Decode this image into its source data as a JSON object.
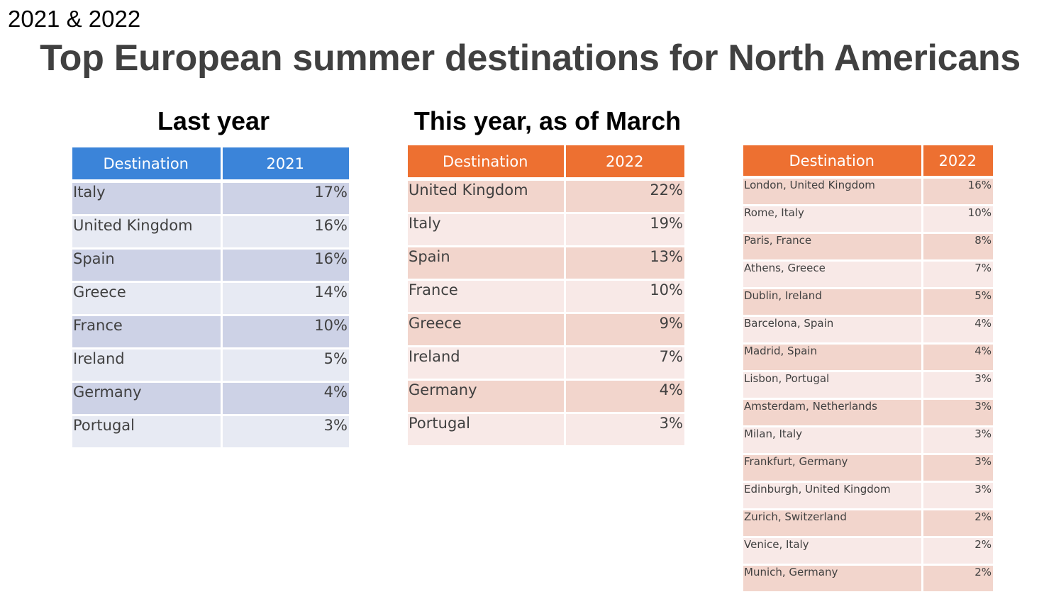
{
  "corner_label": "2021 & 2022",
  "title": "Top European summer destinations for North Americans",
  "last_year": {
    "heading": "Last year",
    "headers": [
      "Destination",
      "2021"
    ],
    "rows": [
      [
        "Italy",
        "17%"
      ],
      [
        "United Kingdom",
        "16%"
      ],
      [
        "Spain",
        "16%"
      ],
      [
        "Greece",
        "14%"
      ],
      [
        "France",
        "10%"
      ],
      [
        "Ireland",
        "5%"
      ],
      [
        "Germany",
        "4%"
      ],
      [
        "Portugal",
        "3%"
      ]
    ]
  },
  "this_year": {
    "heading": "This year, as of March",
    "headers": [
      "Destination",
      "2022"
    ],
    "rows": [
      [
        "United Kingdom",
        "22%"
      ],
      [
        "Italy",
        "19%"
      ],
      [
        "Spain",
        "13%"
      ],
      [
        "France",
        "10%"
      ],
      [
        "Greece",
        "9%"
      ],
      [
        "Ireland",
        "7%"
      ],
      [
        "Germany",
        "4%"
      ],
      [
        "Portugal",
        "3%"
      ]
    ]
  },
  "cities": {
    "headers": [
      "Destination",
      "2022"
    ],
    "rows": [
      [
        "London, United Kingdom",
        "16%"
      ],
      [
        "Rome, Italy",
        "10%"
      ],
      [
        "Paris, France",
        "8%"
      ],
      [
        "Athens, Greece",
        "7%"
      ],
      [
        "Dublin, Ireland",
        "5%"
      ],
      [
        "Barcelona, Spain",
        "4%"
      ],
      [
        "Madrid, Spain",
        "4%"
      ],
      [
        "Lisbon, Portugal",
        "3%"
      ],
      [
        "Amsterdam, Netherlands",
        "3%"
      ],
      [
        "Milan, Italy",
        "3%"
      ],
      [
        "Frankfurt, Germany",
        "3%"
      ],
      [
        "Edinburgh, United Kingdom",
        "3%"
      ],
      [
        "Zurich, Switzerland",
        "2%"
      ],
      [
        "Venice, Italy",
        "2%"
      ],
      [
        "Munich, Germany",
        "2%"
      ]
    ]
  },
  "colors": {
    "blue_header": "#3b84d9",
    "orange_header": "#ed7031",
    "blue_band_dark": "#cdd2e6",
    "blue_band_light": "#e7eaf3",
    "orange_band_dark": "#f2d5cc",
    "orange_band_light": "#f8e9e7"
  }
}
